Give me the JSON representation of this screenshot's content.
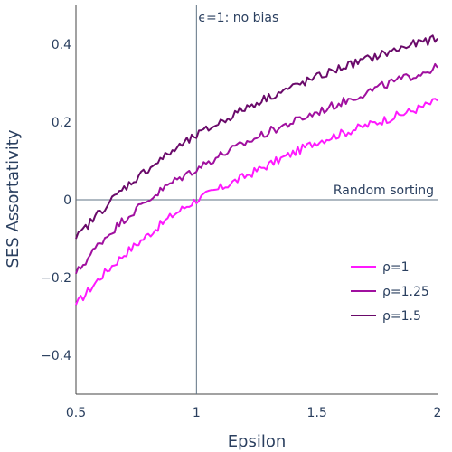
{
  "chart_data": {
    "type": "line",
    "xlabel": "Epsilon",
    "ylabel": "SES Assortativity",
    "xlim": [
      0.5,
      2.0
    ],
    "ylim": [
      -0.5,
      0.5
    ],
    "xticks": [
      0.5,
      1,
      1.5,
      2
    ],
    "xtick_labels": [
      "0.5",
      "1",
      "1.5",
      "2"
    ],
    "yticks": [
      -0.4,
      -0.2,
      0,
      0.2,
      0.4
    ],
    "ytick_labels": [
      "−0.4",
      "−0.2",
      "0",
      "0.2",
      "0.4"
    ],
    "grid": false,
    "legend_position": "bottom-right",
    "reference_lines": [
      {
        "orientation": "vertical",
        "value": 1,
        "label": "ϵ=1: no bias"
      },
      {
        "orientation": "horizontal",
        "value": 0,
        "label": "Random sorting"
      }
    ],
    "x": [
      0.5,
      0.6,
      0.7,
      0.8,
      0.9,
      1.0,
      1.1,
      1.2,
      1.3,
      1.4,
      1.5,
      1.6,
      1.7,
      1.8,
      1.9,
      2.0
    ],
    "series": [
      {
        "name": "ρ=1",
        "color": "#ff19ff",
        "values": [
          -0.27,
          -0.2,
          -0.14,
          -0.09,
          -0.04,
          0.0,
          0.03,
          0.06,
          0.09,
          0.12,
          0.15,
          0.17,
          0.19,
          0.21,
          0.23,
          0.255
        ]
      },
      {
        "name": "ρ=1.25",
        "color": "#a0109f",
        "values": [
          -0.19,
          -0.11,
          -0.05,
          0.0,
          0.045,
          0.08,
          0.115,
          0.145,
          0.175,
          0.2,
          0.225,
          0.25,
          0.275,
          0.3,
          0.32,
          0.34
        ]
      },
      {
        "name": "ρ=1.5",
        "color": "#6a0a6a",
        "values": [
          -0.1,
          -0.03,
          0.03,
          0.08,
          0.125,
          0.165,
          0.2,
          0.235,
          0.265,
          0.29,
          0.315,
          0.34,
          0.36,
          0.38,
          0.4,
          0.415
        ]
      }
    ]
  }
}
